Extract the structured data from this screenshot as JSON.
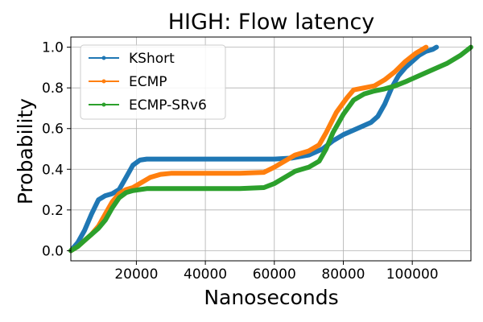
{
  "chart_data": {
    "type": "line",
    "title": "HIGH: Flow latency",
    "xlabel": "Nanoseconds",
    "ylabel": "Probability",
    "xlim": [
      1000,
      117000
    ],
    "ylim": [
      -0.05,
      1.05
    ],
    "xticks": [
      20000,
      40000,
      60000,
      80000,
      100000
    ],
    "yticks": [
      0.0,
      0.2,
      0.4,
      0.6,
      0.8,
      1.0
    ],
    "ytick_labels": [
      "0.0",
      "0.2",
      "0.4",
      "0.6",
      "0.8",
      "1.0"
    ],
    "grid": true,
    "legend": "top-left",
    "series": [
      {
        "name": "KShort",
        "color": "#1f77b4",
        "x": [
          1000,
          3000,
          5000,
          7000,
          9000,
          11000,
          13000,
          15000,
          17000,
          19000,
          21000,
          23000,
          25000,
          30000,
          40000,
          50000,
          60000,
          65000,
          70000,
          74000,
          77000,
          80000,
          84000,
          88000,
          90000,
          92000,
          94000,
          96000,
          98000,
          100000,
          102000,
          104000,
          106000,
          107000
        ],
        "y": [
          0.0,
          0.04,
          0.1,
          0.18,
          0.25,
          0.27,
          0.28,
          0.3,
          0.36,
          0.42,
          0.445,
          0.45,
          0.45,
          0.45,
          0.45,
          0.45,
          0.45,
          0.455,
          0.47,
          0.5,
          0.54,
          0.57,
          0.6,
          0.63,
          0.66,
          0.72,
          0.8,
          0.86,
          0.9,
          0.93,
          0.96,
          0.98,
          0.99,
          1.0
        ]
      },
      {
        "name": "ECMP",
        "color": "#ff7f0e",
        "x": [
          1000,
          3000,
          5000,
          7000,
          9000,
          11000,
          13000,
          15000,
          17000,
          19000,
          21000,
          24000,
          27000,
          30000,
          35000,
          40000,
          50000,
          57000,
          60000,
          63000,
          66000,
          70000,
          73000,
          75000,
          78000,
          81000,
          83000,
          86000,
          89000,
          92000,
          95000,
          98000,
          101000,
          104000
        ],
        "y": [
          0.0,
          0.02,
          0.05,
          0.08,
          0.12,
          0.18,
          0.24,
          0.28,
          0.3,
          0.31,
          0.33,
          0.36,
          0.375,
          0.38,
          0.38,
          0.38,
          0.38,
          0.385,
          0.41,
          0.44,
          0.47,
          0.49,
          0.52,
          0.58,
          0.68,
          0.75,
          0.79,
          0.8,
          0.81,
          0.84,
          0.88,
          0.93,
          0.97,
          1.0
        ]
      },
      {
        "name": "ECMP-SRv6",
        "color": "#2ca02c",
        "x": [
          1000,
          3000,
          5000,
          7000,
          9000,
          11000,
          13000,
          15000,
          17000,
          19000,
          21000,
          23000,
          26000,
          30000,
          40000,
          50000,
          57000,
          60000,
          63000,
          66000,
          70000,
          73000,
          75000,
          77000,
          80000,
          83000,
          86000,
          89000,
          92000,
          95000,
          98000,
          102000,
          106000,
          110000,
          114000,
          117000
        ],
        "y": [
          0.0,
          0.02,
          0.05,
          0.08,
          0.11,
          0.15,
          0.21,
          0.26,
          0.285,
          0.295,
          0.3,
          0.305,
          0.305,
          0.305,
          0.305,
          0.305,
          0.31,
          0.33,
          0.36,
          0.39,
          0.41,
          0.44,
          0.5,
          0.58,
          0.67,
          0.74,
          0.77,
          0.785,
          0.795,
          0.81,
          0.83,
          0.86,
          0.89,
          0.92,
          0.96,
          1.0
        ]
      }
    ]
  }
}
